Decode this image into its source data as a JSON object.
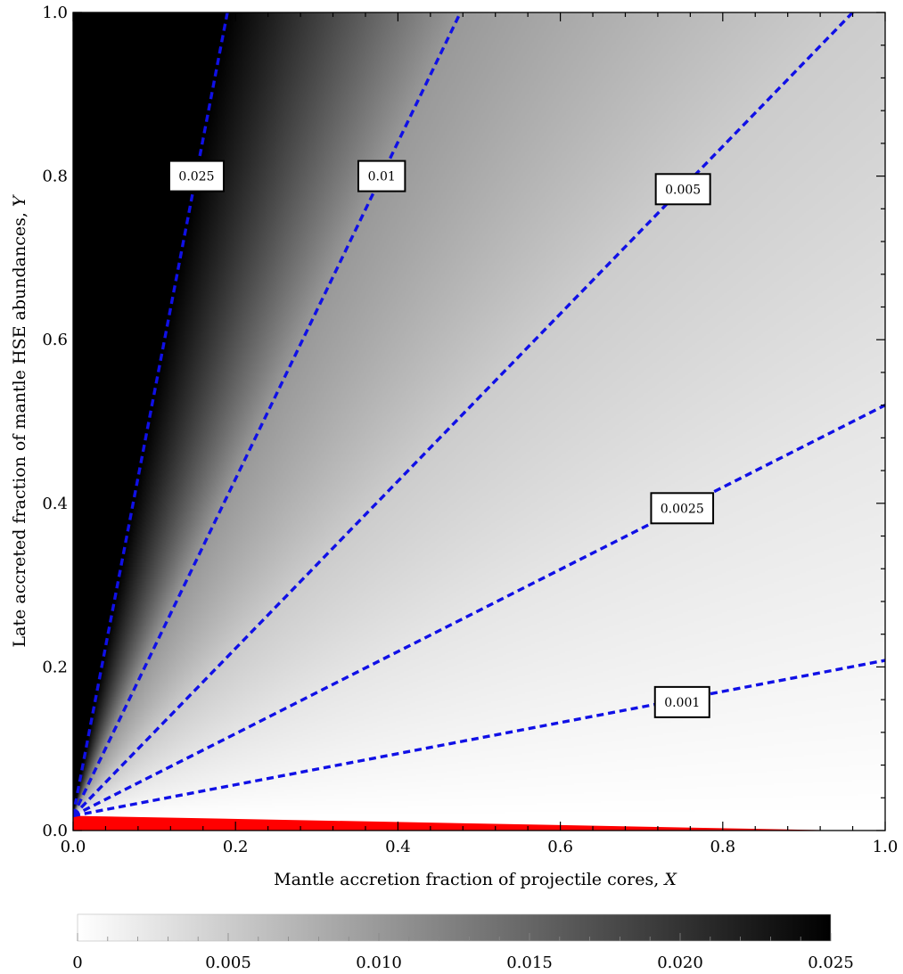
{
  "chart_data": {
    "type": "heatmap",
    "title": "",
    "xlabel": "Mantle accretion fraction of projectile cores, ",
    "xlabel_var": "X",
    "ylabel": "Late accreted fraction of mantle HSE abundances, ",
    "ylabel_var": "Y",
    "xlim": [
      0,
      1
    ],
    "ylim": [
      0,
      1
    ],
    "x_ticks": [
      "0.0",
      "0.2",
      "0.4",
      "0.6",
      "0.8",
      "1.0"
    ],
    "y_ticks": [
      "0.0",
      "0.2",
      "0.4",
      "0.6",
      "0.8",
      "1.0"
    ],
    "grid": false,
    "colormap": "white-to-black",
    "color_range": [
      0,
      0.025
    ],
    "colorbar": {
      "position": "bottom",
      "ticks": [
        "0",
        "0.005",
        "0.010",
        "0.015",
        "0.020",
        "0.025"
      ],
      "values": [
        0,
        0.005,
        0.01,
        0.015,
        0.02,
        0.025
      ]
    },
    "origin_point": [
      0,
      0.018
    ],
    "contour_color": "#1010e6",
    "contours": [
      {
        "label": "0.025",
        "value": 0.025,
        "end": [
          0.19,
          1.0
        ],
        "label_pos": [
          0.152,
          0.8
        ]
      },
      {
        "label": "0.01",
        "value": 0.01,
        "end": [
          0.477,
          1.0
        ],
        "label_pos": [
          0.38,
          0.8
        ]
      },
      {
        "label": "0.005",
        "value": 0.005,
        "end": [
          0.96,
          1.0
        ],
        "label_pos": [
          0.751,
          0.784
        ]
      },
      {
        "label": "0.0025",
        "value": 0.0025,
        "end": [
          1.0,
          0.52
        ],
        "label_pos": [
          0.75,
          0.394
        ]
      },
      {
        "label": "0.001",
        "value": 0.001,
        "end": [
          1.0,
          0.208
        ],
        "label_pos": [
          0.75,
          0.157
        ]
      }
    ],
    "excluded_region": {
      "color": "#ff0000",
      "polygon": [
        [
          0,
          0
        ],
        [
          0,
          0.018
        ],
        [
          0.95,
          0
        ],
        [
          0,
          0
        ]
      ]
    }
  }
}
